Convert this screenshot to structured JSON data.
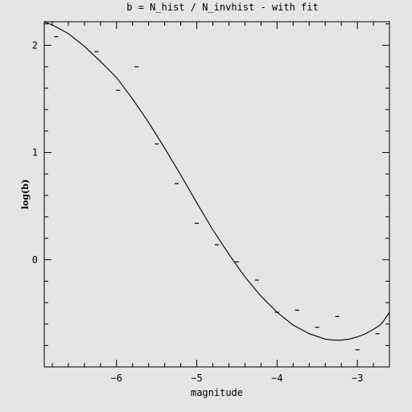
{
  "chart_data": {
    "type": "scatter",
    "title": "b = N_hist / N_invhist - with fit",
    "xlabel": "magnitude",
    "ylabel": "log(b)",
    "xlim": [
      -6.9,
      -2.6
    ],
    "ylim": [
      -1.0,
      2.22
    ],
    "x_ticks": [
      -6,
      -5,
      -4,
      -3
    ],
    "x_tick_labels": [
      "−6",
      "−5",
      "−4",
      "−3"
    ],
    "y_ticks": [
      0,
      1,
      2
    ],
    "y_tick_labels": [
      "0",
      "1",
      "2"
    ],
    "grid": false,
    "series": [
      {
        "kind": "points",
        "marker": "dash",
        "x": [
          -6.75,
          -6.25,
          -5.75,
          -5.5,
          -5.25,
          -5.0,
          -4.75,
          -4.5,
          -4.25,
          -4.0,
          -3.75,
          -3.5,
          -3.25,
          -3.0,
          -2.75,
          -5.98
        ],
        "y": [
          2.08,
          1.94,
          1.8,
          1.08,
          0.71,
          0.34,
          0.14,
          -0.02,
          -0.19,
          -0.49,
          -0.47,
          -0.63,
          -0.53,
          -0.84,
          -0.69,
          1.58
        ]
      },
      {
        "kind": "line",
        "x": [
          -6.9,
          -6.8,
          -6.6,
          -6.4,
          -6.2,
          -6.0,
          -5.8,
          -5.6,
          -5.4,
          -5.2,
          -5.0,
          -4.8,
          -4.6,
          -4.4,
          -4.2,
          -4.0,
          -3.8,
          -3.6,
          -3.4,
          -3.3,
          -3.2,
          -3.1,
          -3.0,
          -2.9,
          -2.8,
          -2.7,
          -2.6
        ],
        "y": [
          2.22,
          2.19,
          2.11,
          1.99,
          1.85,
          1.7,
          1.5,
          1.28,
          1.04,
          0.79,
          0.53,
          0.28,
          0.05,
          -0.16,
          -0.34,
          -0.49,
          -0.61,
          -0.69,
          -0.74,
          -0.75,
          -0.75,
          -0.74,
          -0.72,
          -0.69,
          -0.65,
          -0.6,
          -0.49
        ]
      }
    ]
  }
}
